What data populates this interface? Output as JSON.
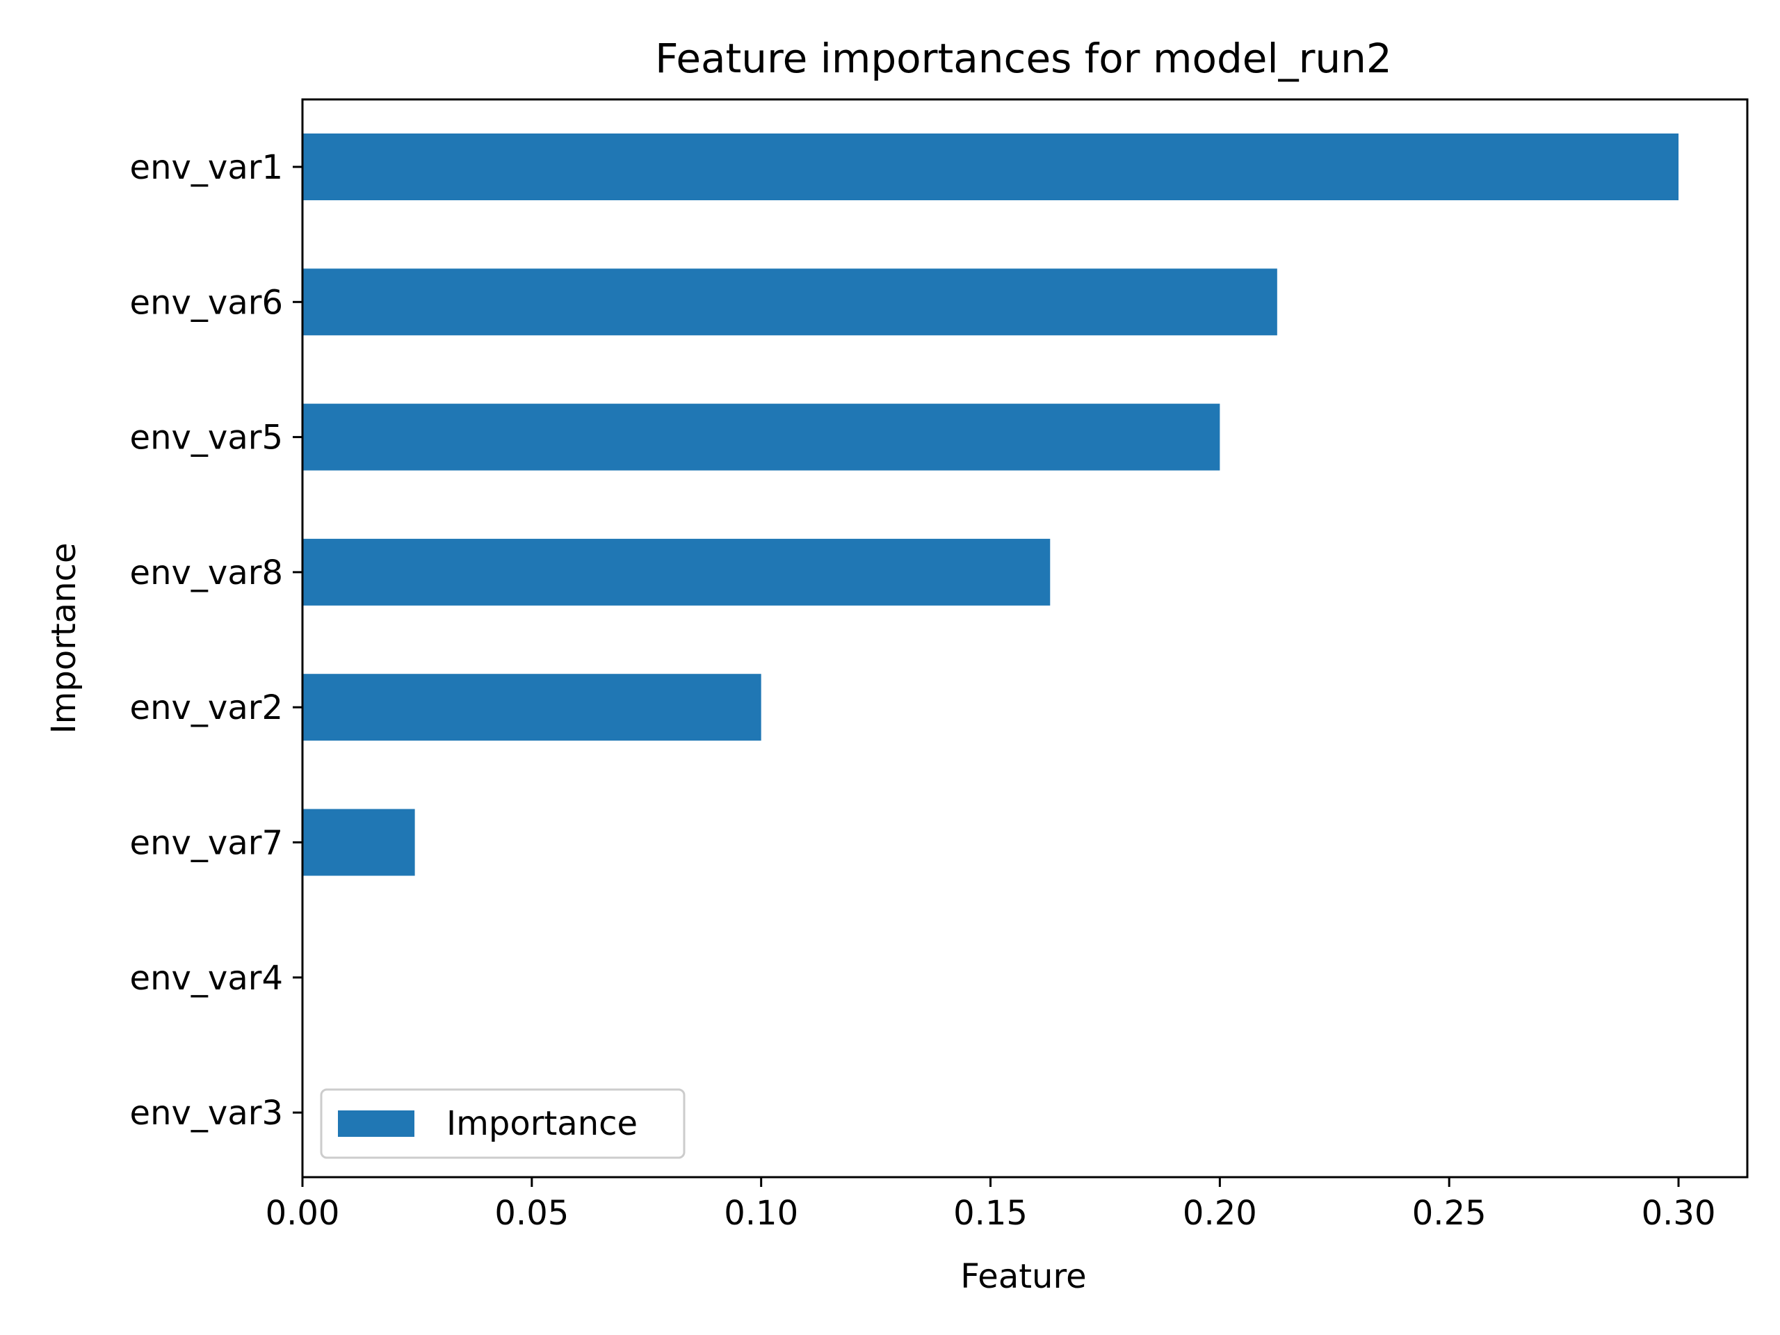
{
  "chart_data": {
    "type": "bar",
    "orientation": "horizontal",
    "title": "Feature importances for model_run2",
    "xlabel": "Feature",
    "ylabel": "Importance",
    "categories": [
      "env_var1",
      "env_var6",
      "env_var5",
      "env_var8",
      "env_var2",
      "env_var7",
      "env_var4",
      "env_var3"
    ],
    "series": [
      {
        "name": "Importance",
        "values": [
          0.3,
          0.2125,
          0.2,
          0.163,
          0.1,
          0.0245,
          0.0,
          0.0
        ]
      }
    ],
    "xlim": [
      0,
      0.315
    ],
    "xticks": [
      0.0,
      0.05,
      0.1,
      0.15,
      0.2,
      0.25,
      0.3
    ],
    "xtick_labels": [
      "0.00",
      "0.05",
      "0.10",
      "0.15",
      "0.20",
      "0.25",
      "0.30"
    ],
    "grid": false,
    "legend_position": "lower-left",
    "colors": {
      "bar": "#2077b4",
      "axis": "#000000",
      "legend_border": "#cccccc"
    }
  }
}
